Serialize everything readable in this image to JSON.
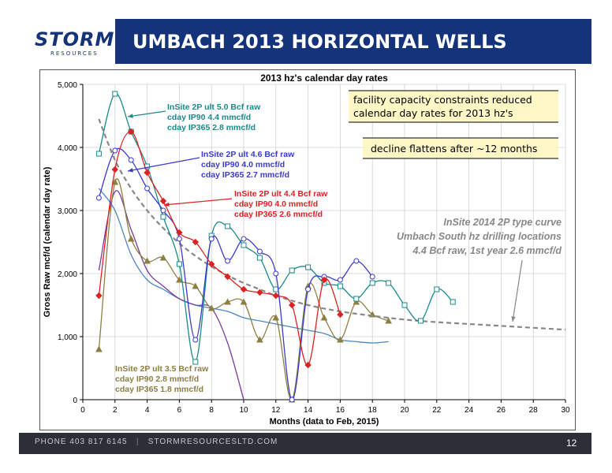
{
  "header": {
    "logo": "STORM",
    "logo_sub": "RESOURCES",
    "title": "UMBACH 2013 HORIZONTAL WELLS"
  },
  "footer": {
    "phone": "PHONE 403 817 6145",
    "website": "STORMRESOURCESLTD.COM",
    "page": "12"
  },
  "chart_data": {
    "type": "line",
    "title": "2013 hz's calendar day rates",
    "xlabel": "Months (data to  Feb, 2015)",
    "ylabel": "Gross Raw mcf/d (calendar day rate)",
    "xlim": [
      0,
      30
    ],
    "ylim": [
      0,
      5000
    ],
    "xticks": [
      0,
      2,
      4,
      6,
      8,
      10,
      12,
      14,
      16,
      18,
      20,
      22,
      24,
      26,
      28,
      30
    ],
    "yticks": [
      0,
      1000,
      2000,
      3000,
      4000,
      5000
    ],
    "ytick_labels": [
      "0",
      "1,000",
      "2,000",
      "3,000",
      "4,000",
      "5,000"
    ],
    "grid": true,
    "series": [
      {
        "key": "teal",
        "color": "#1a8a8a",
        "marker": "square",
        "points": [
          [
            1,
            3900
          ],
          [
            2,
            4850
          ],
          [
            3,
            4250
          ],
          [
            4,
            3700
          ],
          [
            5,
            2900
          ],
          [
            6,
            2150
          ],
          [
            7,
            600
          ],
          [
            8,
            2600
          ],
          [
            9,
            2750
          ],
          [
            10,
            2450
          ],
          [
            11,
            2250
          ],
          [
            12,
            1750
          ],
          [
            13,
            2050
          ],
          [
            14,
            2100
          ],
          [
            15,
            1850
          ],
          [
            16,
            1800
          ],
          [
            17,
            1600
          ],
          [
            18,
            1850
          ],
          [
            19,
            1850
          ],
          [
            20,
            1500
          ],
          [
            21,
            1250
          ],
          [
            22,
            1750
          ],
          [
            23,
            1550
          ]
        ]
      },
      {
        "key": "blue",
        "color": "#3a3acc",
        "marker": "circle",
        "points": [
          [
            1,
            3200
          ],
          [
            2,
            3950
          ],
          [
            3,
            3800
          ],
          [
            4,
            3350
          ],
          [
            5,
            3000
          ],
          [
            6,
            2550
          ],
          [
            7,
            950
          ],
          [
            8,
            2550
          ],
          [
            9,
            2200
          ],
          [
            10,
            2550
          ],
          [
            11,
            2350
          ],
          [
            12,
            2000
          ],
          [
            13,
            0
          ],
          [
            14,
            1750
          ],
          [
            15,
            1950
          ],
          [
            16,
            1900
          ],
          [
            17,
            2200
          ],
          [
            18,
            1950
          ]
        ]
      },
      {
        "key": "red",
        "color": "#dd2222",
        "marker": "diamond",
        "points": [
          [
            1,
            1650
          ],
          [
            2,
            3650
          ],
          [
            3,
            4250
          ],
          [
            4,
            3600
          ],
          [
            5,
            3150
          ],
          [
            6,
            2650
          ],
          [
            7,
            2500
          ],
          [
            8,
            2150
          ],
          [
            9,
            1950
          ],
          [
            10,
            1750
          ],
          [
            11,
            1700
          ],
          [
            12,
            1650
          ],
          [
            13,
            1500
          ],
          [
            14,
            550
          ],
          [
            15,
            1900
          ],
          [
            16,
            1350
          ]
        ]
      },
      {
        "key": "olive",
        "color": "#8c7f44",
        "marker": "triangle",
        "points": [
          [
            1,
            800
          ],
          [
            2,
            3450
          ],
          [
            3,
            2550
          ],
          [
            4,
            2200
          ],
          [
            5,
            2250
          ],
          [
            6,
            1900
          ],
          [
            7,
            1800
          ],
          [
            8,
            1450
          ],
          [
            9,
            1550
          ],
          [
            10,
            1550
          ],
          [
            11,
            950
          ],
          [
            12,
            1300
          ],
          [
            13,
            0
          ],
          [
            14,
            1800
          ],
          [
            15,
            1300
          ],
          [
            16,
            950
          ],
          [
            17,
            1550
          ],
          [
            18,
            1350
          ],
          [
            19,
            1250
          ]
        ]
      },
      {
        "key": "purple",
        "color": "#7a3a9a",
        "marker": "none",
        "points": [
          [
            1,
            2050
          ],
          [
            2,
            3300
          ],
          [
            3,
            2700
          ],
          [
            4,
            2050
          ],
          [
            5,
            1800
          ],
          [
            6,
            1600
          ],
          [
            7,
            1500
          ],
          [
            8,
            1450
          ],
          [
            9,
            900
          ],
          [
            10,
            0
          ]
        ]
      },
      {
        "key": "steelblue",
        "color": "#4a86c0",
        "marker": "none",
        "points": [
          [
            1,
            3350
          ],
          [
            2,
            3000
          ],
          [
            3,
            2300
          ],
          [
            4,
            1900
          ],
          [
            5,
            1750
          ],
          [
            6,
            1600
          ],
          [
            7,
            1500
          ],
          [
            8,
            1450
          ],
          [
            9,
            1400
          ],
          [
            10,
            1300
          ],
          [
            11,
            1250
          ],
          [
            12,
            1200
          ],
          [
            13,
            1150
          ],
          [
            14,
            1100
          ],
          [
            15,
            1050
          ],
          [
            16,
            950
          ],
          [
            17,
            920
          ],
          [
            18,
            900
          ],
          [
            19,
            920
          ]
        ]
      },
      {
        "key": "typecurve",
        "color": "#888888",
        "marker": "none",
        "dashed": true,
        "points": [
          [
            1,
            4450
          ],
          [
            2,
            3800
          ],
          [
            3,
            3350
          ],
          [
            4,
            3000
          ],
          [
            5,
            2720
          ],
          [
            6,
            2480
          ],
          [
            7,
            2280
          ],
          [
            8,
            2110
          ],
          [
            9,
            1970
          ],
          [
            10,
            1850
          ],
          [
            11,
            1750
          ],
          [
            12,
            1650
          ],
          [
            14,
            1500
          ],
          [
            16,
            1400
          ],
          [
            18,
            1330
          ],
          [
            20,
            1270
          ],
          [
            22,
            1230
          ],
          [
            24,
            1200
          ],
          [
            26,
            1170
          ],
          [
            28,
            1140
          ],
          [
            30,
            1110
          ]
        ]
      }
    ],
    "annotations": [
      {
        "key": "teal",
        "color": "#1a8a8a",
        "lines": [
          "InSite 2P ult 5.0 Bcf raw",
          "cday IP90    4.4 mmcf/d",
          "cday IP365  2.8 mmcf/d"
        ]
      },
      {
        "key": "blue",
        "color": "#3a3acc",
        "lines": [
          "InSite 2P ult 4.6 Bcf raw",
          "cday IP90    4.0 mmcf/d",
          "cday IP365  2.7 mmcf/d"
        ]
      },
      {
        "key": "red",
        "color": "#dd2222",
        "lines": [
          "InSite 2P ult 4.4 Bcf raw",
          "cday IP90    4.0 mmcf/d",
          "cday IP365  2.6 mmcf/d"
        ]
      },
      {
        "key": "olive",
        "color": "#8c7f44",
        "lines": [
          "InSite 2P ult 3.5 Bcf raw",
          "cday IP90    2.8 mmcf/d",
          "cday IP365  1.8 mmcf/d"
        ]
      },
      {
        "key": "typecurve",
        "color": "#888888",
        "lines": [
          "InSite 2014 2P type curve",
          "Umbach South hz drilling locations",
          "4.4 Bcf raw, 1st year 2.6 mmcf/d"
        ]
      }
    ],
    "callouts": [
      {
        "lines": [
          "facility capacity constraints reduced",
          "calendar day rates for 2013 hz's"
        ]
      },
      {
        "lines": [
          "decline flattens after ~12 months"
        ]
      }
    ]
  }
}
